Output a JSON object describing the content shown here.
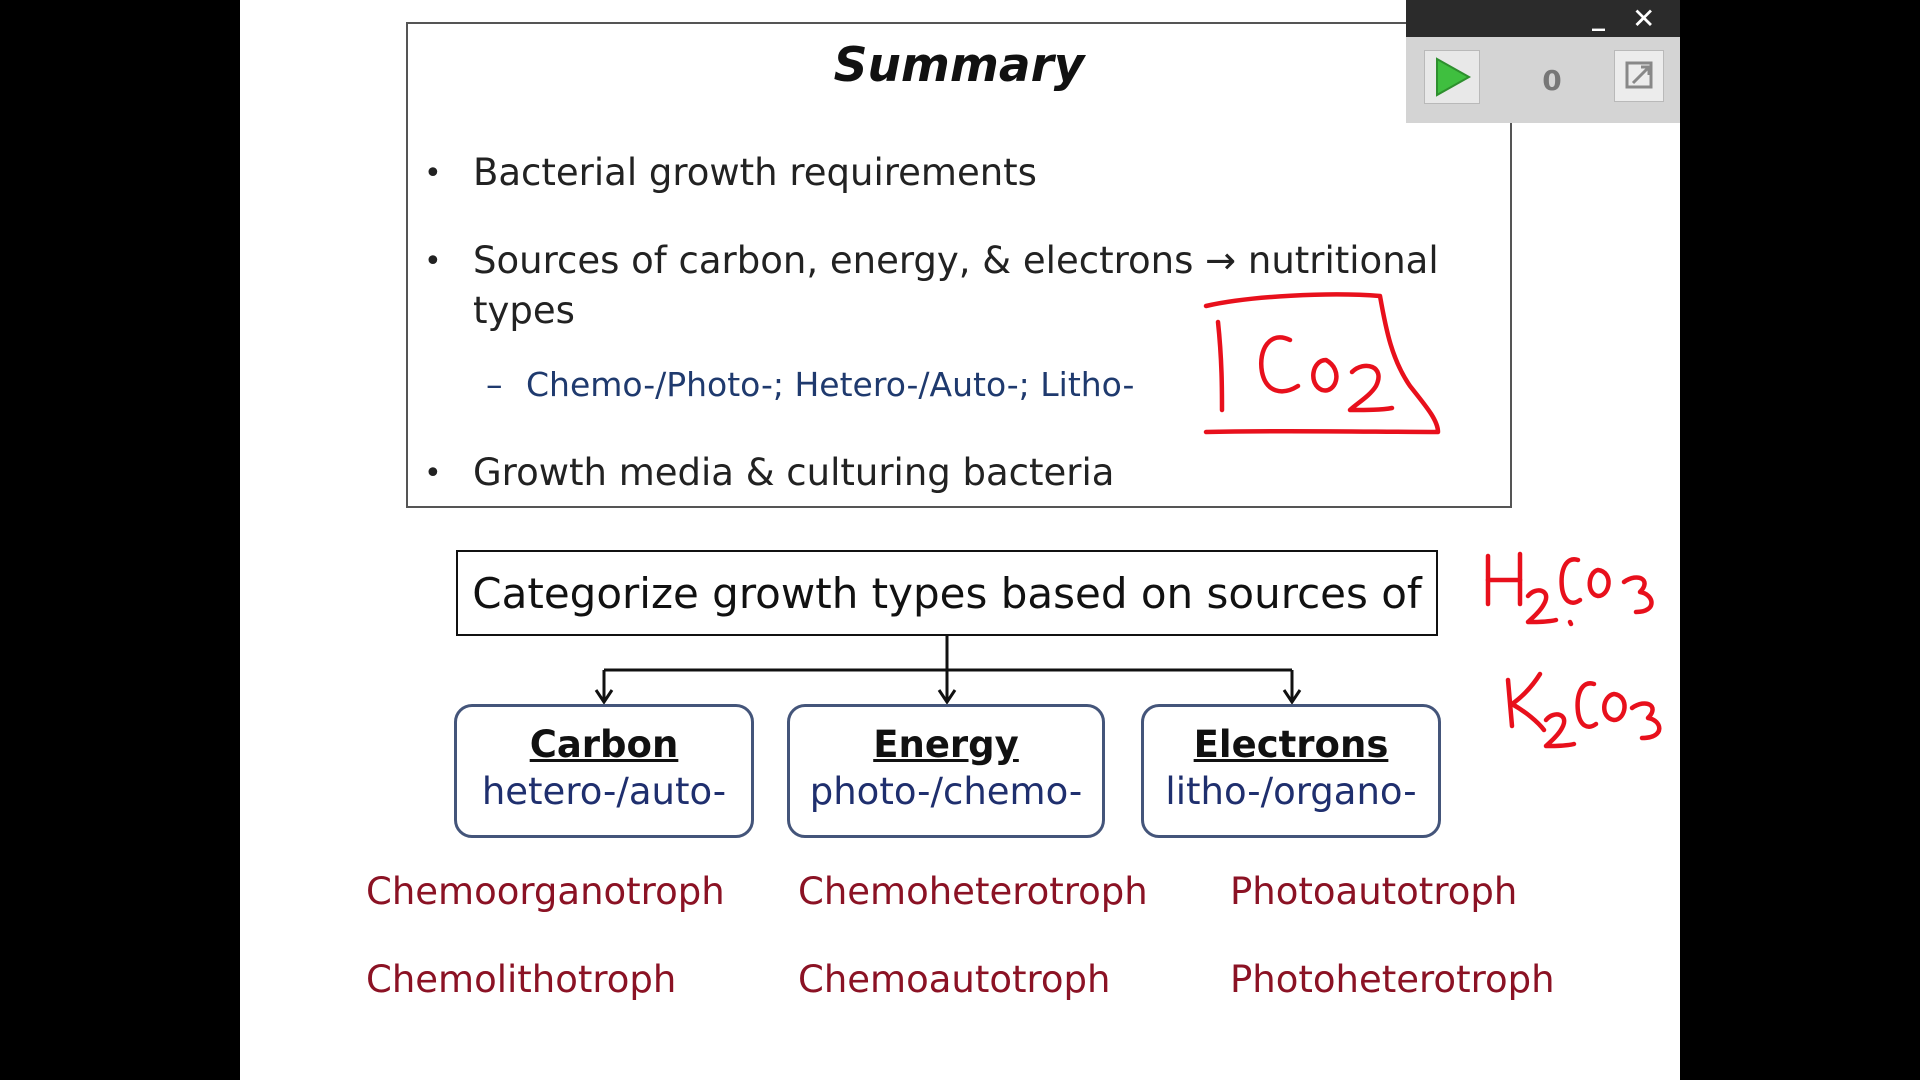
{
  "summary": {
    "title": "Summary",
    "bullets": [
      {
        "dot": "•",
        "text": "Bacterial growth requirements"
      },
      {
        "dot": "•",
        "text": "Sources of carbon, energy, & electrons → nutritional"
      },
      {
        "dot": "",
        "text": "types"
      },
      {
        "dot": "•",
        "text": "Growth media & culturing bacteria"
      }
    ],
    "sub_bullet": {
      "dash": "–",
      "text": "Chemo-/Photo-; Hetero-/Auto-; Litho-"
    }
  },
  "diagram": {
    "root": "Categorize growth types based on sources of",
    "categories": [
      {
        "title": "Carbon",
        "options": "hetero-/auto-"
      },
      {
        "title": "Energy",
        "options": "photo-/chemo-"
      },
      {
        "title": "Electrons",
        "options": "litho-/organo-"
      }
    ],
    "line_color": "#111111",
    "box_border_color": "#44557a"
  },
  "terms": [
    [
      "Chemoorganotroph",
      "Chemoheterotroph",
      "Photoautotroph"
    ],
    [
      "Chemolithotroph",
      "Chemoautotroph",
      "Photoheterotroph"
    ]
  ],
  "player": {
    "minimize": "_",
    "close": "✕",
    "count": "0",
    "play_icon": "play-icon",
    "expand_icon": "expand-icon"
  },
  "colors": {
    "term_text": "#8b1224",
    "sub_text": "#1f3a6e",
    "ink": "#e8101c",
    "play_green": "#3fbf3f"
  }
}
